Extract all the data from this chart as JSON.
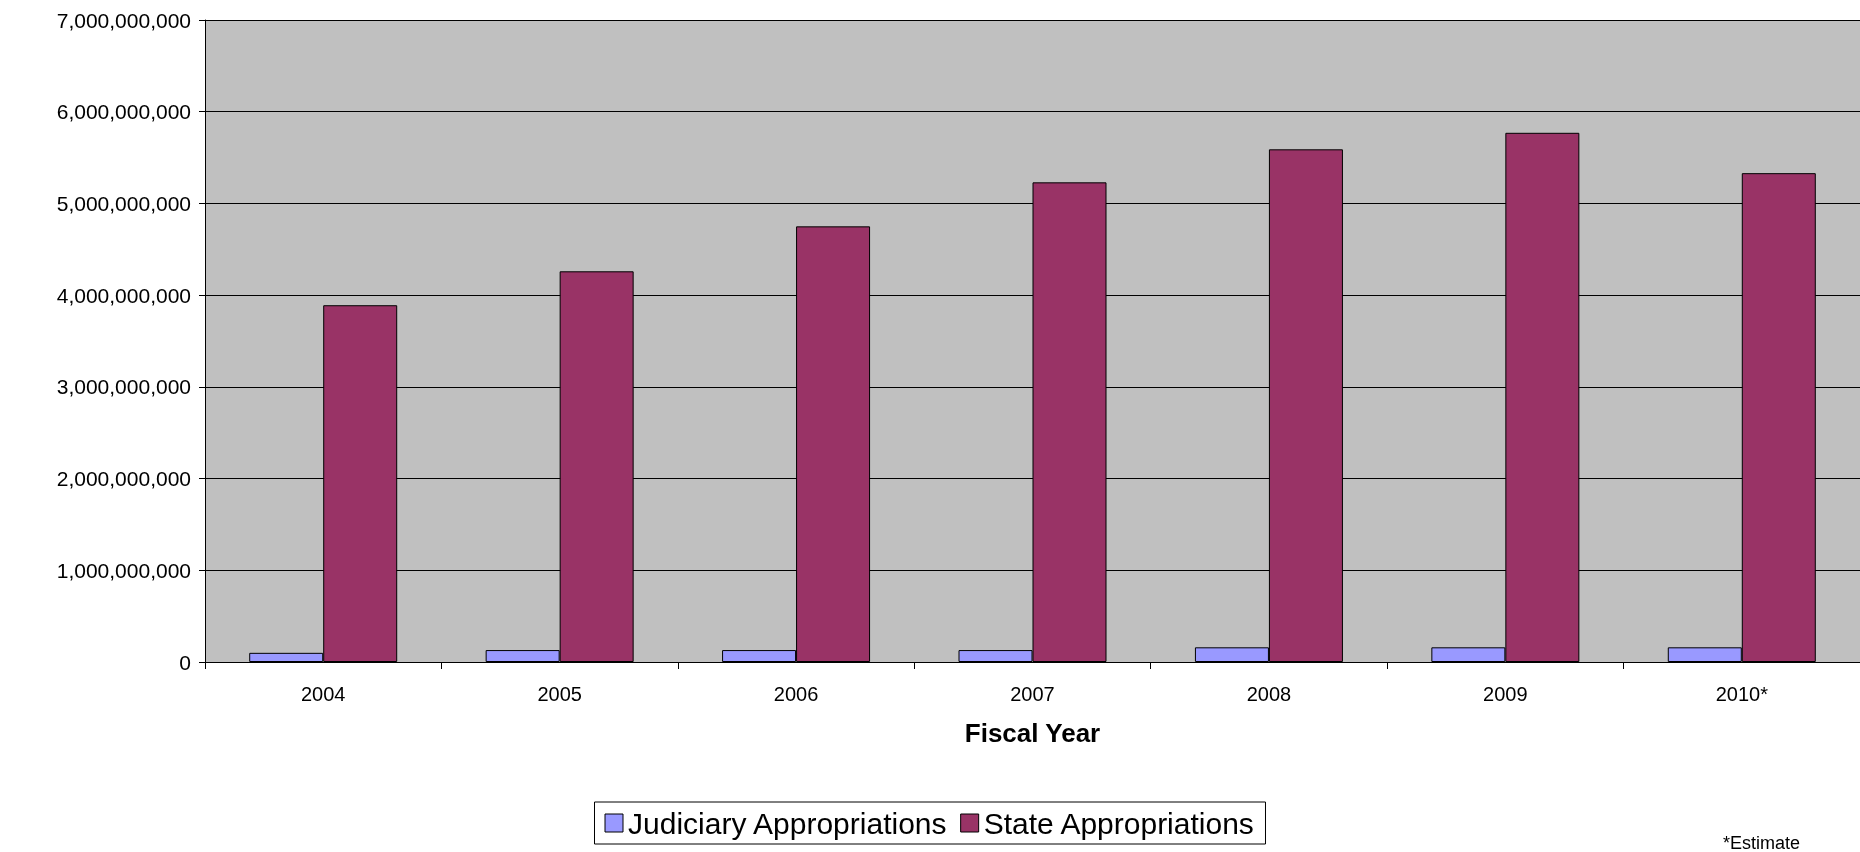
{
  "chart_data": {
    "type": "bar",
    "xlabel": "Fiscal Year",
    "categories": [
      "2004",
      "2005",
      "2006",
      "2007",
      "2008",
      "2009",
      "2010*"
    ],
    "series": [
      {
        "name": "Judiciary Appropriations",
        "color": "#9999ff",
        "values": [
          100000000,
          130000000,
          130000000,
          130000000,
          160000000,
          160000000,
          160000000
        ]
      },
      {
        "name": "State Appropriations",
        "color": "#993366",
        "values": [
          3890000000,
          4260000000,
          4750000000,
          5230000000,
          5590000000,
          5770000000,
          5330000000
        ]
      }
    ],
    "ylim": [
      0,
      7000000000
    ],
    "yticks": [
      0,
      {
        "value": 1000000000,
        "label": "1,000,000,000"
      },
      {
        "value": 2000000000,
        "label": "2,000,000,000"
      },
      {
        "value": 3000000000,
        "label": "3,000,000,000"
      },
      {
        "value": 4000000000,
        "label": "4,000,000,000"
      },
      {
        "value": 5000000000,
        "label": "5,000,000,000"
      },
      {
        "value": 6000000000,
        "label": "6,000,000,000"
      },
      {
        "value": 7000000000,
        "label": "7,000,000,000"
      }
    ],
    "grid": "y",
    "legend": "bottom",
    "annotations": [
      "*Estimate"
    ]
  }
}
